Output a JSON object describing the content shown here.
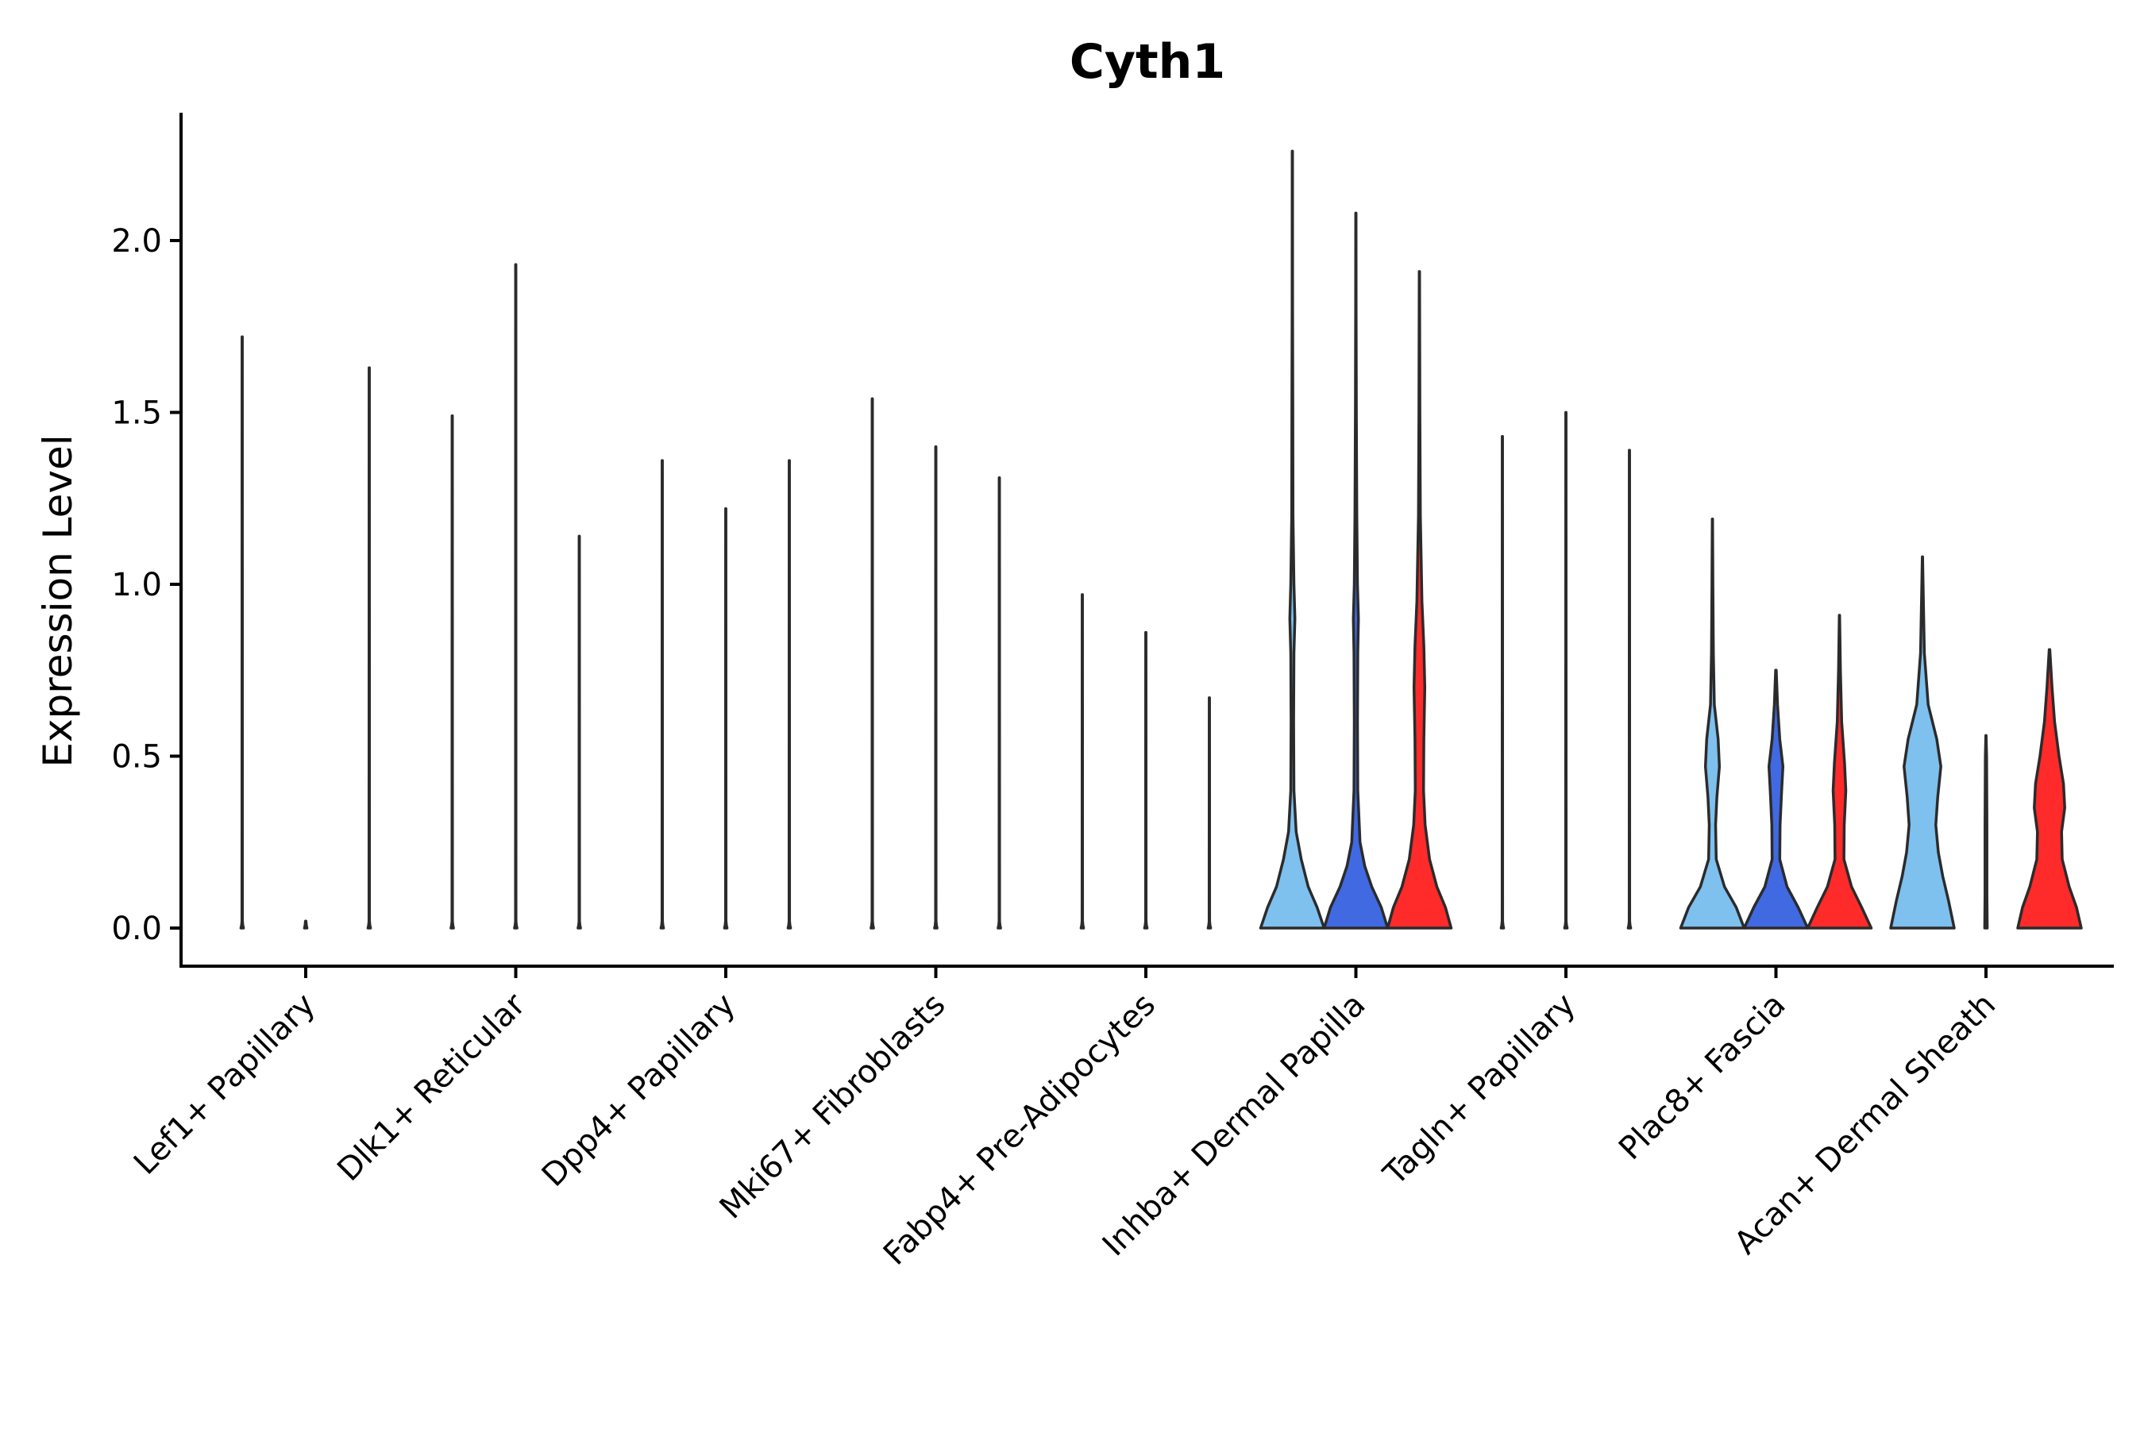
{
  "chart_data": {
    "type": "violin",
    "title": "Cyth1",
    "xlabel": "",
    "ylabel": "Expression Level",
    "ylim": [
      -0.1,
      2.35
    ],
    "yticks": [
      "0.0",
      "0.5",
      "1.0",
      "1.5",
      "2.0"
    ],
    "ytick_values": [
      0,
      0.5,
      1.0,
      1.5,
      2.0
    ],
    "grid": false,
    "legend": "none",
    "series_colors": [
      "#7EC0EE",
      "#4169E1",
      "#FF2A2A"
    ],
    "categories": [
      "Lef1+ Papillary",
      "Dlk1+ Reticular",
      "Dpp4+ Papillary",
      "Mki67+ Fibroblasts",
      "Fabp4+ Pre-Adipocytes",
      "Inhba+ Dermal Papilla",
      "Tagln+ Papillary",
      "Plac8+ Fascia",
      "Acan+ Dermal Sheath"
    ],
    "max_values": [
      [
        1.72,
        0.0,
        1.63
      ],
      [
        1.49,
        1.93,
        1.14
      ],
      [
        1.36,
        1.22,
        1.36
      ],
      [
        1.54,
        1.4,
        1.31
      ],
      [
        0.97,
        0.86,
        0.67
      ],
      [
        2.26,
        2.08,
        1.91
      ],
      [
        1.43,
        1.5,
        1.39
      ],
      [
        1.19,
        0.75,
        0.91
      ],
      [
        1.08,
        0.56,
        0.81
      ]
    ],
    "filled_groups": [
      5,
      7,
      8
    ],
    "density_profiles": {
      "5": [
        [
          [
            0,
            1.0
          ],
          [
            0.06,
            0.78
          ],
          [
            0.12,
            0.5
          ],
          [
            0.2,
            0.28
          ],
          [
            0.28,
            0.12
          ],
          [
            0.4,
            0.05
          ],
          [
            0.6,
            0.04
          ],
          [
            0.8,
            0.05
          ],
          [
            0.9,
            0.08
          ],
          [
            1.0,
            0.05
          ],
          [
            1.2,
            0.02
          ],
          [
            1.5,
            0.015
          ],
          [
            1.8,
            0.008
          ],
          [
            2.26,
            0.004
          ]
        ],
        [
          [
            0,
            1.0
          ],
          [
            0.06,
            0.8
          ],
          [
            0.12,
            0.5
          ],
          [
            0.18,
            0.28
          ],
          [
            0.25,
            0.13
          ],
          [
            0.4,
            0.06
          ],
          [
            0.6,
            0.05
          ],
          [
            0.8,
            0.06
          ],
          [
            0.9,
            0.08
          ],
          [
            1.0,
            0.05
          ],
          [
            1.2,
            0.03
          ],
          [
            1.5,
            0.015
          ],
          [
            1.8,
            0.008
          ],
          [
            2.08,
            0.004
          ]
        ],
        [
          [
            0,
            1.0
          ],
          [
            0.06,
            0.82
          ],
          [
            0.12,
            0.55
          ],
          [
            0.2,
            0.32
          ],
          [
            0.3,
            0.18
          ],
          [
            0.4,
            0.13
          ],
          [
            0.55,
            0.14
          ],
          [
            0.7,
            0.17
          ],
          [
            0.82,
            0.14
          ],
          [
            0.95,
            0.08
          ],
          [
            1.2,
            0.03
          ],
          [
            1.5,
            0.015
          ],
          [
            1.91,
            0.005
          ]
        ]
      ],
      "7": [
        [
          [
            0,
            1.0
          ],
          [
            0.06,
            0.75
          ],
          [
            0.12,
            0.38
          ],
          [
            0.2,
            0.12
          ],
          [
            0.3,
            0.1
          ],
          [
            0.38,
            0.14
          ],
          [
            0.47,
            0.22
          ],
          [
            0.55,
            0.18
          ],
          [
            0.65,
            0.06
          ],
          [
            0.8,
            0.03
          ],
          [
            1.0,
            0.015
          ],
          [
            1.19,
            0.005
          ]
        ],
        [
          [
            0,
            1.0
          ],
          [
            0.06,
            0.7
          ],
          [
            0.12,
            0.35
          ],
          [
            0.2,
            0.12
          ],
          [
            0.3,
            0.13
          ],
          [
            0.4,
            0.18
          ],
          [
            0.47,
            0.22
          ],
          [
            0.55,
            0.12
          ],
          [
            0.65,
            0.05
          ],
          [
            0.75,
            0.01
          ]
        ],
        [
          [
            0,
            1.0
          ],
          [
            0.06,
            0.7
          ],
          [
            0.12,
            0.38
          ],
          [
            0.2,
            0.14
          ],
          [
            0.3,
            0.15
          ],
          [
            0.4,
            0.2
          ],
          [
            0.48,
            0.16
          ],
          [
            0.6,
            0.07
          ],
          [
            0.75,
            0.03
          ],
          [
            0.91,
            0.005
          ]
        ]
      ],
      "8": [
        [
          [
            0,
            1.0
          ],
          [
            0.08,
            0.82
          ],
          [
            0.15,
            0.64
          ],
          [
            0.22,
            0.5
          ],
          [
            0.3,
            0.42
          ],
          [
            0.38,
            0.48
          ],
          [
            0.47,
            0.58
          ],
          [
            0.55,
            0.45
          ],
          [
            0.65,
            0.18
          ],
          [
            0.8,
            0.06
          ],
          [
            1.0,
            0.02
          ],
          [
            1.08,
            0.005
          ]
        ],
        [
          [
            0,
            0.04
          ],
          [
            0.1,
            0.03
          ],
          [
            0.3,
            0.03
          ],
          [
            0.5,
            0.02
          ],
          [
            0.56,
            0.005
          ]
        ],
        [
          [
            0,
            1.0
          ],
          [
            0.06,
            0.85
          ],
          [
            0.12,
            0.62
          ],
          [
            0.2,
            0.4
          ],
          [
            0.28,
            0.38
          ],
          [
            0.35,
            0.48
          ],
          [
            0.42,
            0.44
          ],
          [
            0.5,
            0.3
          ],
          [
            0.6,
            0.16
          ],
          [
            0.7,
            0.08
          ],
          [
            0.81,
            0.01
          ]
        ]
      ]
    }
  }
}
